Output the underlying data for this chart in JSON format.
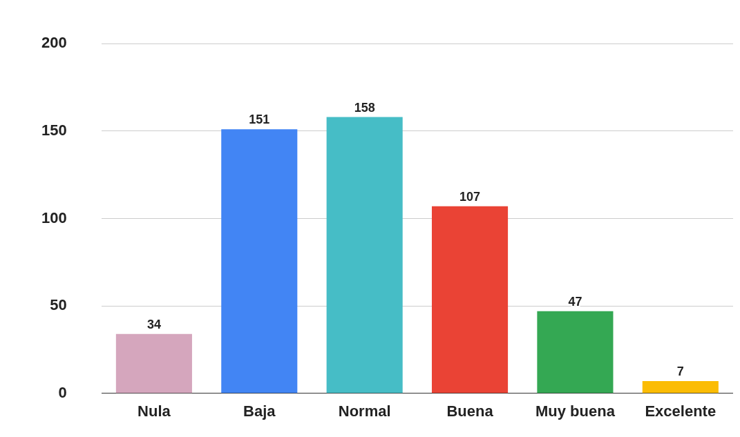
{
  "chart_data": {
    "type": "bar",
    "categories": [
      "Nula",
      "Baja",
      "Normal",
      "Buena",
      "Muy buena",
      "Excelente"
    ],
    "values": [
      34,
      151,
      158,
      107,
      47,
      7
    ],
    "colors": [
      "#d5a6bd",
      "#4285f4",
      "#46bdc6",
      "#ea4335",
      "#34a853",
      "#fbbc04"
    ],
    "ylim": [
      0,
      200
    ],
    "yticks": [
      0,
      50,
      100,
      150,
      200
    ],
    "grid": "y",
    "data_labels": true
  }
}
